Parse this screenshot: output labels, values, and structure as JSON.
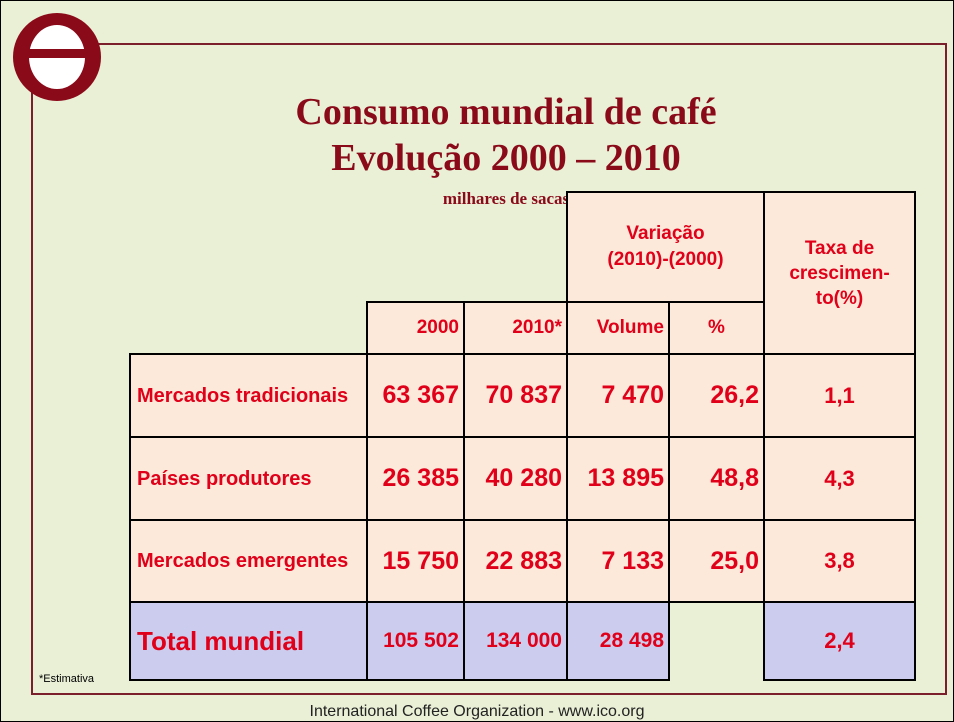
{
  "header": {
    "title_lines": [
      "Consumo mundial de café",
      "Evolução 2000 – 2010"
    ],
    "subtitle": "milhares de sacas"
  },
  "table": {
    "group_header": "Variação (2010)-(2000)",
    "rate_header_lines": [
      "Taxa de",
      "crescimen-",
      "to(%)"
    ],
    "columns": [
      "2000",
      "2010*",
      "Volume",
      "%"
    ],
    "rows": [
      [
        "Mercados tradicionais",
        "63 367",
        "70 837",
        "7 470",
        "26,2",
        "1,1"
      ],
      [
        "Países produtores",
        "26 385",
        "40 280",
        "13 895",
        "48,8",
        "4,3"
      ],
      [
        "Mercados emergentes",
        "15 750",
        "22 883",
        "7 133",
        "25,0",
        "3,8"
      ]
    ],
    "total": [
      "Total mundial",
      "105 502",
      "134 000",
      "28 498",
      "2,4"
    ]
  },
  "footnote": "*Estimativa",
  "footer": "International Coffee Organization  -  www.ico.org"
}
